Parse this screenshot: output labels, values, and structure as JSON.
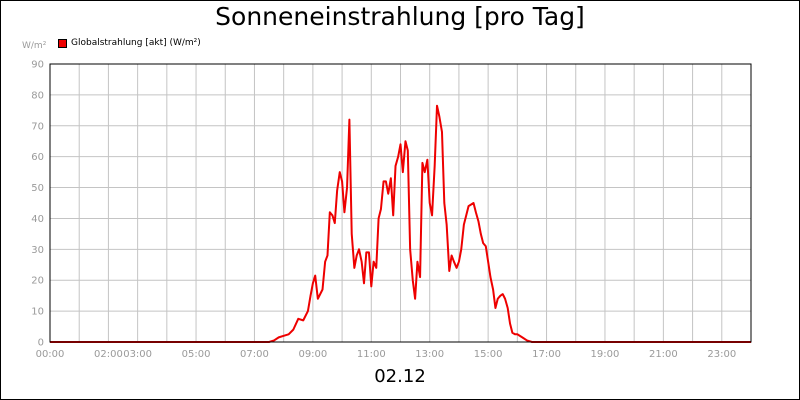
{
  "chart_data": {
    "type": "line",
    "title": "Sonneneinstrahlung [pro Tag]",
    "ylabel": "W/m²",
    "xlabel": "02.12",
    "ylim": [
      0,
      90
    ],
    "yticks": [
      0,
      10,
      20,
      30,
      40,
      50,
      60,
      70,
      80,
      90
    ],
    "xlim": [
      0,
      24
    ],
    "xticks": [
      {
        "h": 0,
        "label": "00:00"
      },
      {
        "h": 2,
        "label": "02:00"
      },
      {
        "h": 3,
        "label": "03:00"
      },
      {
        "h": 5,
        "label": "05:00"
      },
      {
        "h": 7,
        "label": "07:00"
      },
      {
        "h": 9,
        "label": "09:00"
      },
      {
        "h": 11,
        "label": "11:00"
      },
      {
        "h": 13,
        "label": "13:00"
      },
      {
        "h": 15,
        "label": "15:00"
      },
      {
        "h": 17,
        "label": "17:00"
      },
      {
        "h": 19,
        "label": "19:00"
      },
      {
        "h": 21,
        "label": "21:00"
      },
      {
        "h": 23,
        "label": "23:00"
      }
    ],
    "grid": true,
    "legend_position": "top-left",
    "series": [
      {
        "name": "Globalstrahlung [akt] (W/m²)",
        "color": "#ee0000",
        "x": [
          0,
          7.5,
          7.67,
          7.83,
          8.0,
          8.17,
          8.33,
          8.5,
          8.67,
          8.83,
          8.92,
          9.0,
          9.08,
          9.17,
          9.33,
          9.42,
          9.5,
          9.58,
          9.67,
          9.75,
          9.83,
          9.92,
          10.0,
          10.08,
          10.17,
          10.25,
          10.33,
          10.42,
          10.5,
          10.58,
          10.67,
          10.75,
          10.83,
          10.92,
          11.0,
          11.08,
          11.17,
          11.25,
          11.33,
          11.42,
          11.5,
          11.58,
          11.67,
          11.75,
          11.83,
          11.92,
          12.0,
          12.08,
          12.17,
          12.25,
          12.33,
          12.42,
          12.5,
          12.58,
          12.67,
          12.75,
          12.83,
          12.92,
          13.0,
          13.08,
          13.17,
          13.25,
          13.33,
          13.42,
          13.5,
          13.58,
          13.67,
          13.75,
          13.83,
          13.92,
          14.0,
          14.08,
          14.17,
          14.33,
          14.5,
          14.58,
          14.67,
          14.75,
          14.83,
          14.92,
          15.0,
          15.08,
          15.17,
          15.25,
          15.33,
          15.42,
          15.5,
          15.58,
          15.67,
          15.75,
          15.83,
          15.92,
          16.0,
          16.17,
          16.33,
          16.5,
          16.67,
          16.83,
          17.0,
          24.0
        ],
        "y": [
          0,
          0,
          0.5,
          1.5,
          2,
          2.5,
          4,
          7.5,
          7,
          10,
          15,
          19,
          21.5,
          14,
          17,
          26,
          28,
          42,
          41,
          38.5,
          49,
          55,
          52,
          42,
          50,
          72,
          35,
          24,
          28,
          30,
          26,
          19,
          29,
          29,
          18,
          26,
          24,
          40,
          43,
          52,
          52,
          48,
          53,
          41,
          57,
          60,
          64,
          55,
          65,
          62,
          30,
          20,
          14,
          26,
          21,
          58,
          55,
          59,
          45,
          41,
          57,
          76.5,
          73,
          68,
          45,
          38,
          23,
          28,
          26,
          24,
          26,
          30,
          38,
          44,
          45,
          42,
          39,
          35,
          32,
          31,
          26,
          21,
          17,
          11,
          14,
          15,
          15.5,
          14,
          11,
          6,
          3,
          2.5,
          2.5,
          1.5,
          0.5,
          0,
          0,
          0,
          0,
          0
        ]
      }
    ]
  }
}
